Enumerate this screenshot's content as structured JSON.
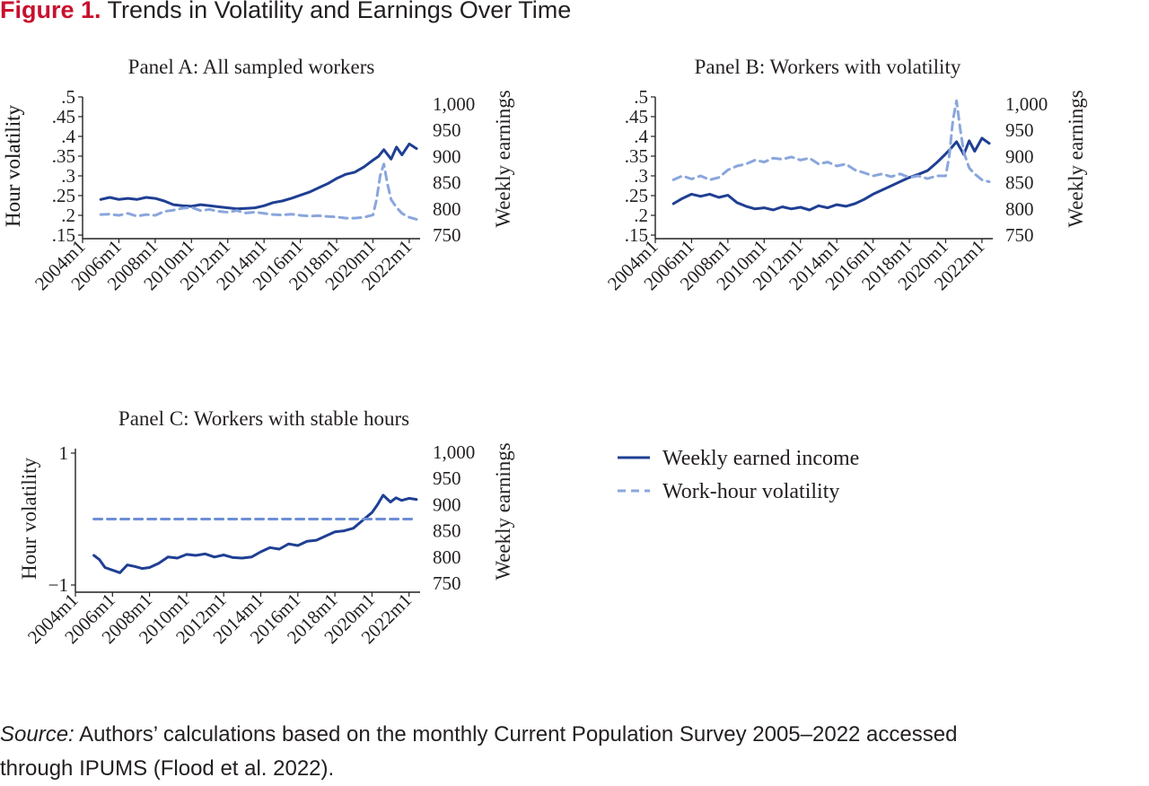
{
  "figure": {
    "label": "Figure 1.",
    "title": "Trends in Volatility and Earnings Over Time"
  },
  "source": {
    "label": "Source:",
    "line1": "Authors’ calculations based on the monthly Current Population Survey 2005–2022 accessed",
    "line2": "through IPUMS (Flood et al. 2022)."
  },
  "legend": {
    "earned_label": "Weekly earned income",
    "volatility_label": "Work-hour volatility"
  },
  "colors": {
    "earned": "#1f3f93",
    "volatility": "#8aa6dc",
    "volatility_c": "#6d8fd6",
    "axis": "#231f20"
  },
  "chart_data": [
    {
      "type": "line",
      "title": "Panel A: All sampled workers",
      "ylabel_left": "Hour volatility",
      "ylabel_right": "Weekly earnings",
      "x_ticks": [
        "2004m1",
        "2006m1",
        "2008m1",
        "2010m1",
        "2012m1",
        "2014m1",
        "2016m1",
        "2018m1",
        "2020m1",
        "2022m1"
      ],
      "y_left_ticks": [
        ".15",
        ".2",
        ".25",
        ".3",
        ".35",
        ".4",
        ".45",
        ".5"
      ],
      "y_left_range": [
        0.15,
        0.5
      ],
      "y_right_ticks": [
        "750",
        "800",
        "850",
        "900",
        "950",
        "1,000"
      ],
      "y_right_range": [
        750,
        1000
      ],
      "x_range": [
        2004.0,
        2022.5
      ],
      "series": [
        {
          "name": "Weekly earned income",
          "axis": "right",
          "x": [
            2005.0,
            2005.5,
            2006.0,
            2006.5,
            2007.0,
            2007.5,
            2008.0,
            2008.5,
            2009.0,
            2009.5,
            2010.0,
            2010.5,
            2011.0,
            2011.5,
            2012.0,
            2012.5,
            2013.0,
            2013.5,
            2014.0,
            2014.5,
            2015.0,
            2015.5,
            2016.0,
            2016.5,
            2017.0,
            2017.5,
            2018.0,
            2018.5,
            2019.0,
            2019.5,
            2020.0,
            2020.3,
            2020.6,
            2021.0,
            2021.3,
            2021.6,
            2022.0,
            2022.4
          ],
          "y": [
            818,
            822,
            818,
            820,
            818,
            822,
            820,
            815,
            808,
            806,
            805,
            808,
            806,
            804,
            802,
            800,
            801,
            802,
            806,
            812,
            815,
            820,
            826,
            832,
            840,
            848,
            858,
            866,
            870,
            880,
            893,
            900,
            913,
            895,
            918,
            903,
            924,
            915
          ]
        },
        {
          "name": "Work-hour volatility",
          "axis": "left",
          "x": [
            2005.0,
            2005.5,
            2006.0,
            2006.5,
            2007.0,
            2007.5,
            2008.0,
            2008.5,
            2009.0,
            2009.5,
            2010.0,
            2010.5,
            2011.0,
            2011.5,
            2012.0,
            2012.5,
            2013.0,
            2013.5,
            2014.0,
            2014.5,
            2015.0,
            2015.5,
            2016.0,
            2016.5,
            2017.0,
            2017.5,
            2018.0,
            2018.5,
            2019.0,
            2019.5,
            2020.0,
            2020.2,
            2020.4,
            2020.6,
            2020.8,
            2021.0,
            2021.3,
            2021.6,
            2022.0,
            2022.4
          ],
          "y": [
            0.202,
            0.203,
            0.2,
            0.205,
            0.198,
            0.202,
            0.2,
            0.21,
            0.213,
            0.218,
            0.22,
            0.212,
            0.215,
            0.21,
            0.208,
            0.212,
            0.206,
            0.208,
            0.205,
            0.202,
            0.201,
            0.203,
            0.2,
            0.198,
            0.199,
            0.197,
            0.196,
            0.193,
            0.193,
            0.195,
            0.201,
            0.24,
            0.3,
            0.33,
            0.28,
            0.24,
            0.22,
            0.205,
            0.195,
            0.19
          ]
        }
      ]
    },
    {
      "type": "line",
      "title": "Panel  B: Workers with volatility",
      "ylabel_left": "Hour volatility",
      "ylabel_right": "Weekly earnings",
      "x_ticks": [
        "2004m1",
        "2006m1",
        "2008m1",
        "2010m1",
        "2012m1",
        "2014m1",
        "2016m1",
        "2018m1",
        "2020m1",
        "2022m1"
      ],
      "y_left_ticks": [
        ".15",
        ".2",
        ".25",
        ".3",
        ".35",
        ".4",
        ".45",
        ".5"
      ],
      "y_left_range": [
        0.15,
        0.5
      ],
      "y_right_ticks": [
        "750",
        "800",
        "850",
        "900",
        "950",
        "1,000"
      ],
      "y_right_range": [
        750,
        1000
      ],
      "x_range": [
        2004.0,
        2022.5
      ],
      "series": [
        {
          "name": "Weekly earned income",
          "axis": "right",
          "x": [
            2005.0,
            2005.5,
            2006.0,
            2006.5,
            2007.0,
            2007.5,
            2008.0,
            2008.5,
            2009.0,
            2009.5,
            2010.0,
            2010.5,
            2011.0,
            2011.5,
            2012.0,
            2012.5,
            2013.0,
            2013.5,
            2014.0,
            2014.5,
            2015.0,
            2015.5,
            2016.0,
            2016.5,
            2017.0,
            2017.5,
            2018.0,
            2018.5,
            2019.0,
            2019.5,
            2020.0,
            2020.3,
            2020.6,
            2021.0,
            2021.3,
            2021.6,
            2022.0,
            2022.4
          ],
          "y": [
            810,
            820,
            828,
            824,
            828,
            822,
            826,
            812,
            805,
            800,
            802,
            798,
            804,
            800,
            803,
            798,
            806,
            802,
            808,
            805,
            810,
            818,
            828,
            836,
            844,
            852,
            860,
            866,
            873,
            888,
            905,
            916,
            928,
            904,
            930,
            910,
            935,
            925
          ]
        },
        {
          "name": "Work-hour volatility",
          "axis": "left",
          "x": [
            2005.0,
            2005.5,
            2006.0,
            2006.5,
            2007.0,
            2007.5,
            2008.0,
            2008.5,
            2009.0,
            2009.5,
            2010.0,
            2010.5,
            2011.0,
            2011.5,
            2012.0,
            2012.5,
            2013.0,
            2013.5,
            2014.0,
            2014.5,
            2015.0,
            2015.5,
            2016.0,
            2016.5,
            2017.0,
            2017.5,
            2018.0,
            2018.5,
            2019.0,
            2019.5,
            2020.0,
            2020.2,
            2020.4,
            2020.6,
            2020.8,
            2021.0,
            2021.3,
            2021.6,
            2022.0,
            2022.4
          ],
          "y": [
            0.29,
            0.3,
            0.292,
            0.3,
            0.29,
            0.296,
            0.315,
            0.325,
            0.33,
            0.34,
            0.335,
            0.345,
            0.342,
            0.348,
            0.34,
            0.345,
            0.33,
            0.335,
            0.325,
            0.33,
            0.315,
            0.308,
            0.3,
            0.305,
            0.298,
            0.305,
            0.296,
            0.3,
            0.293,
            0.3,
            0.3,
            0.35,
            0.44,
            0.49,
            0.42,
            0.36,
            0.32,
            0.305,
            0.29,
            0.285
          ]
        }
      ]
    },
    {
      "type": "line",
      "title": "Panel  C: Workers with stable hours",
      "ylabel_left": "Hour volatility",
      "ylabel_right": "Weekly earnings",
      "x_ticks": [
        "2004m1",
        "2006m1",
        "2008m1",
        "2010m1",
        "2012m1",
        "2014m1",
        "2016m1",
        "2018m1",
        "2020m1",
        "2022m1"
      ],
      "y_left_ticks": [
        "−1",
        "1"
      ],
      "y_left_range": [
        -1,
        1
      ],
      "y_right_ticks": [
        "750",
        "800",
        "850",
        "900",
        "950",
        "1,000"
      ],
      "y_right_range": [
        750,
        1000
      ],
      "x_range": [
        2004.0,
        2022.5
      ],
      "series": [
        {
          "name": "Weekly earned income",
          "axis": "right",
          "x": [
            2005.0,
            2005.3,
            2005.6,
            2006.0,
            2006.4,
            2006.8,
            2007.2,
            2007.6,
            2008.0,
            2008.5,
            2009.0,
            2009.5,
            2010.0,
            2010.5,
            2011.0,
            2011.5,
            2012.0,
            2012.5,
            2013.0,
            2013.5,
            2014.0,
            2014.5,
            2015.0,
            2015.5,
            2016.0,
            2016.5,
            2017.0,
            2017.5,
            2018.0,
            2018.5,
            2019.0,
            2019.5,
            2020.0,
            2020.3,
            2020.6,
            2021.0,
            2021.3,
            2021.6,
            2022.0,
            2022.4
          ],
          "y": [
            803,
            795,
            780,
            775,
            770,
            785,
            782,
            778,
            780,
            788,
            800,
            798,
            805,
            803,
            806,
            800,
            804,
            799,
            798,
            800,
            810,
            818,
            815,
            825,
            822,
            830,
            832,
            840,
            848,
            850,
            855,
            870,
            885,
            900,
            918,
            905,
            913,
            908,
            912,
            910
          ]
        },
        {
          "name": "Work-hour volatility",
          "axis": "left",
          "x": [
            2005.0,
            2022.4
          ],
          "y": [
            0.0,
            0.0
          ]
        }
      ]
    }
  ]
}
